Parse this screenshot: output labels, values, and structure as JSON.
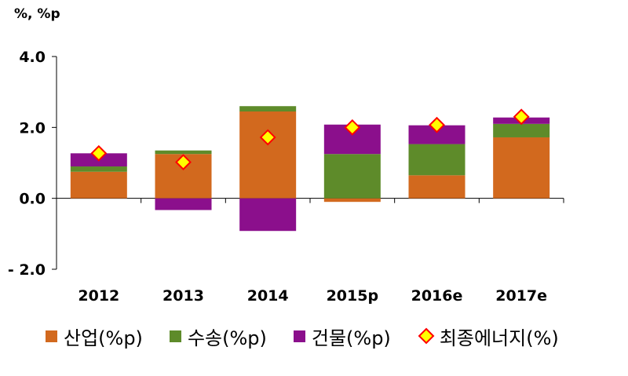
{
  "chart_data": {
    "type": "bar",
    "stacked": true,
    "unit_label": "%, %p",
    "categories": [
      "2012",
      "2013",
      "2014",
      "2015p",
      "2016e",
      "2017e"
    ],
    "series": [
      {
        "name": "산업(%p)",
        "color": "#D2691E",
        "values": [
          0.75,
          1.25,
          2.45,
          -0.1,
          0.65,
          1.72
        ]
      },
      {
        "name": "수송(%p)",
        "color": "#5E8B2A",
        "values": [
          0.15,
          0.1,
          0.15,
          1.25,
          0.88,
          0.38
        ]
      },
      {
        "name": "건물(%p)",
        "color": "#8B0F8C",
        "values": [
          0.37,
          -0.33,
          -0.92,
          0.83,
          0.53,
          0.18
        ]
      }
    ],
    "line_series": {
      "name": "최종에너지(%)",
      "marker": "diamond",
      "fill": "#FFFF00",
      "stroke": "#FF0000",
      "values": [
        1.27,
        1.02,
        1.72,
        2.0,
        2.07,
        2.3
      ]
    },
    "yticks": [
      "4.0",
      "2.0",
      "0.0",
      "- 2.0"
    ],
    "ytick_values": [
      4.0,
      2.0,
      0.0,
      -2.0
    ],
    "ylim": [
      -2.0,
      4.0
    ],
    "grid": false,
    "legend_position": "bottom"
  }
}
